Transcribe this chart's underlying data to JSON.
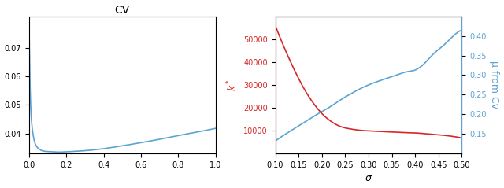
{
  "left": {
    "title": "CV",
    "xlim": [
      0,
      1.0
    ],
    "yticks": [
      0.04,
      0.05,
      0.06,
      0.07
    ],
    "xticks": [
      0.0,
      0.2,
      0.4,
      0.6,
      0.8,
      1.0
    ],
    "color": "#5ba3d0",
    "cv_x": [
      0.0005,
      0.001,
      0.002,
      0.003,
      0.005,
      0.008,
      0.012,
      0.018,
      0.025,
      0.035,
      0.05,
      0.07,
      0.1,
      0.15,
      0.2,
      0.3,
      0.4,
      0.5,
      0.6,
      0.7,
      0.8,
      0.9,
      1.0
    ],
    "cv_y": [
      0.0782,
      0.076,
      0.071,
      0.066,
      0.059,
      0.052,
      0.046,
      0.0415,
      0.0385,
      0.0362,
      0.0348,
      0.034,
      0.0337,
      0.0335,
      0.0336,
      0.034,
      0.0347,
      0.0357,
      0.0368,
      0.038,
      0.0393,
      0.0405,
      0.0418
    ]
  },
  "right": {
    "xlabel": "σ",
    "sigma_values": [
      0.1,
      0.12,
      0.14,
      0.16,
      0.18,
      0.2,
      0.22,
      0.24,
      0.26,
      0.28,
      0.3,
      0.32,
      0.34,
      0.36,
      0.38,
      0.4,
      0.42,
      0.44,
      0.46,
      0.48,
      0.5
    ],
    "k_star": [
      56000,
      46000,
      37000,
      29000,
      22500,
      17500,
      14000,
      11800,
      10800,
      10200,
      9900,
      9700,
      9500,
      9300,
      9100,
      9000,
      8700,
      8400,
      8000,
      7500,
      6800
    ],
    "mu_cv": [
      0.132,
      0.148,
      0.163,
      0.178,
      0.193,
      0.207,
      0.221,
      0.237,
      0.251,
      0.264,
      0.275,
      0.284,
      0.292,
      0.3,
      0.308,
      0.313,
      0.33,
      0.355,
      0.375,
      0.398,
      0.415
    ],
    "k_color": "#d62728",
    "mu_color": "#5ba3d0",
    "k_ylabel": "$k^*$",
    "mu_ylabel": "μ from Cv",
    "xlim": [
      0.1,
      0.5
    ],
    "xticks": [
      0.1,
      0.15,
      0.2,
      0.25,
      0.3,
      0.35,
      0.4,
      0.45,
      0.5
    ],
    "k_ylim": [
      0,
      60000
    ],
    "k_yticks": [
      10000,
      20000,
      30000,
      40000,
      50000
    ],
    "mu_ylim": [
      0.1,
      0.45
    ],
    "mu_yticks": [
      0.15,
      0.2,
      0.25,
      0.3,
      0.35,
      0.4
    ]
  }
}
